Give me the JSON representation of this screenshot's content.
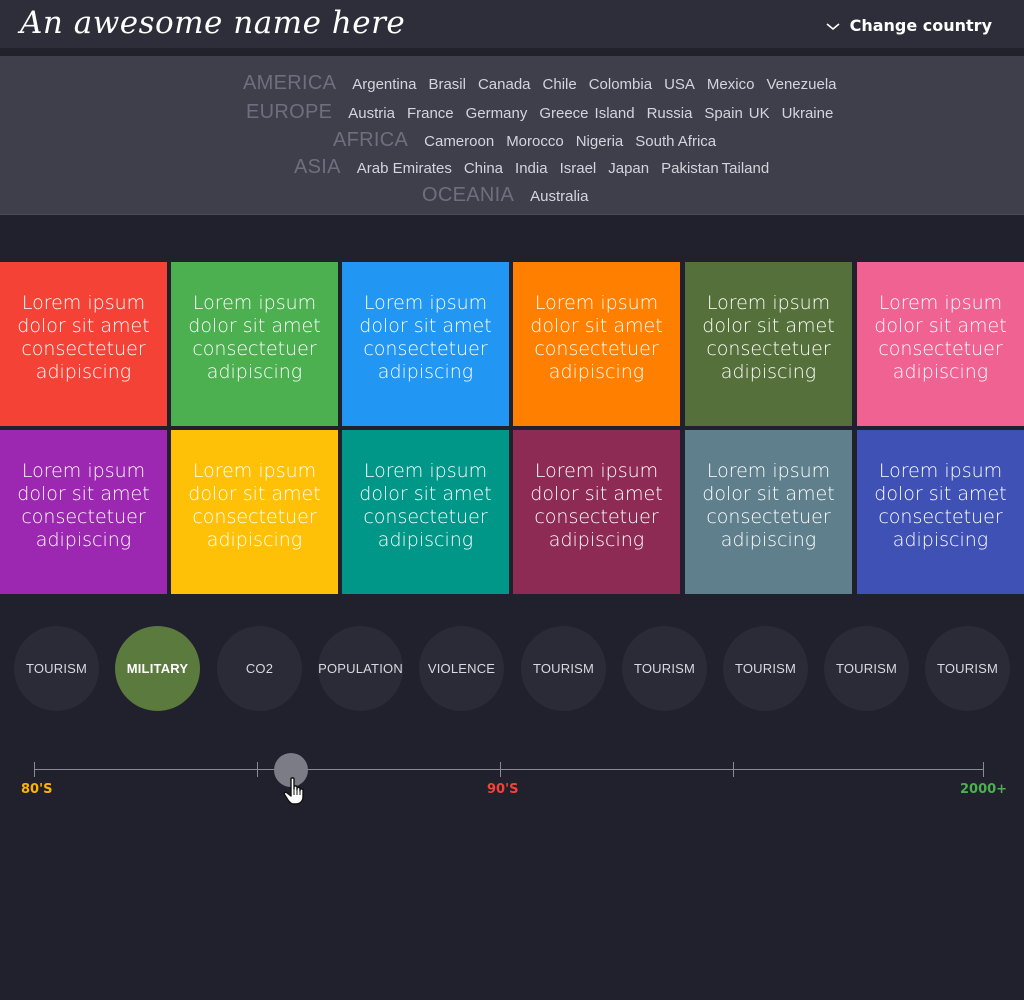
{
  "header": {
    "logo_text": "An awesome name here",
    "change_country_label": "Change country",
    "chevron_icon": "chevron-down-icon"
  },
  "regions": [
    {
      "name": "AMERICA",
      "countries": [
        "Argentina",
        "Brasil",
        "Canada",
        "Chile",
        "Colombia",
        "USA",
        "Mexico",
        "Venezuela"
      ]
    },
    {
      "name": "EUROPE",
      "countries": [
        "Austria",
        "France",
        "Germany",
        "Greece",
        "Island",
        "Russia",
        "Spain",
        "UK",
        "Ukraine"
      ]
    },
    {
      "name": "AFRICA",
      "countries": [
        "Cameroon",
        "Morocco",
        "Nigeria",
        "South Africa"
      ]
    },
    {
      "name": "ASIA",
      "countries": [
        "Arab Emirates",
        "China",
        "India",
        "Israel",
        "Japan",
        "Pakistan",
        "Tailand"
      ]
    },
    {
      "name": "OCEANIA",
      "countries": [
        "Australia"
      ]
    }
  ],
  "tiles": [
    {
      "text": "Lorem ipsum dolor sit amet consectetuer adipiscing",
      "color": "#f44336"
    },
    {
      "text": "Lorem ipsum dolor sit amet consectetuer adipiscing",
      "color": "#4caf50"
    },
    {
      "text": "Lorem ipsum dolor sit amet consectetuer adipiscing",
      "color": "#2196f3"
    },
    {
      "text": "Lorem ipsum dolor sit amet consectetuer adipiscing",
      "color": "#ff7f00"
    },
    {
      "text": "Lorem ipsum dolor sit amet consectetuer adipiscing",
      "color": "#55703a"
    },
    {
      "text": "Lorem ipsum dolor sit amet consectetuer adipiscing",
      "color": "#f06292"
    },
    {
      "text": "Lorem ipsum dolor sit amet consectetuer adipiscing",
      "color": "#9c27b0"
    },
    {
      "text": "Lorem ipsum dolor sit amet consectetuer adipiscing",
      "color": "#ffc107"
    },
    {
      "text": "Lorem ipsum dolor sit amet consectetuer adipiscing",
      "color": "#009688"
    },
    {
      "text": "Lorem ipsum dolor sit amet consectetuer adipiscing",
      "color": "#8e2b55"
    },
    {
      "text": "Lorem ipsum dolor sit amet consectetuer adipiscing",
      "color": "#5f7f8c"
    },
    {
      "text": "Lorem ipsum dolor sit amet consectetuer adipiscing",
      "color": "#3f51b5"
    }
  ],
  "categories": [
    {
      "label": "TOURISM",
      "active": false
    },
    {
      "label": "MILITARY",
      "active": true
    },
    {
      "label": "CO2",
      "active": false
    },
    {
      "label": "POPULATION",
      "active": false
    },
    {
      "label": "VIOLENCE",
      "active": false
    },
    {
      "label": "TOURISM",
      "active": false
    },
    {
      "label": "TOURISM",
      "active": false
    },
    {
      "label": "TOURISM",
      "active": false
    },
    {
      "label": "TOURISM",
      "active": false
    },
    {
      "label": "TOURISM",
      "active": false
    }
  ],
  "timeline": {
    "labels": [
      {
        "text": "80'S",
        "color": "#ffb300"
      },
      {
        "text": "90'S",
        "color": "#f44336"
      },
      {
        "text": "2000+",
        "color": "#4caf50"
      }
    ],
    "handle_position_fraction": 0.27,
    "cursor_icon": "hand-pointer-icon"
  },
  "colors": {
    "background": "#21212d",
    "header_bg": "#2e2e3a",
    "panel_bg": "#3f3f4c",
    "active_category": "#5b7a3d"
  }
}
